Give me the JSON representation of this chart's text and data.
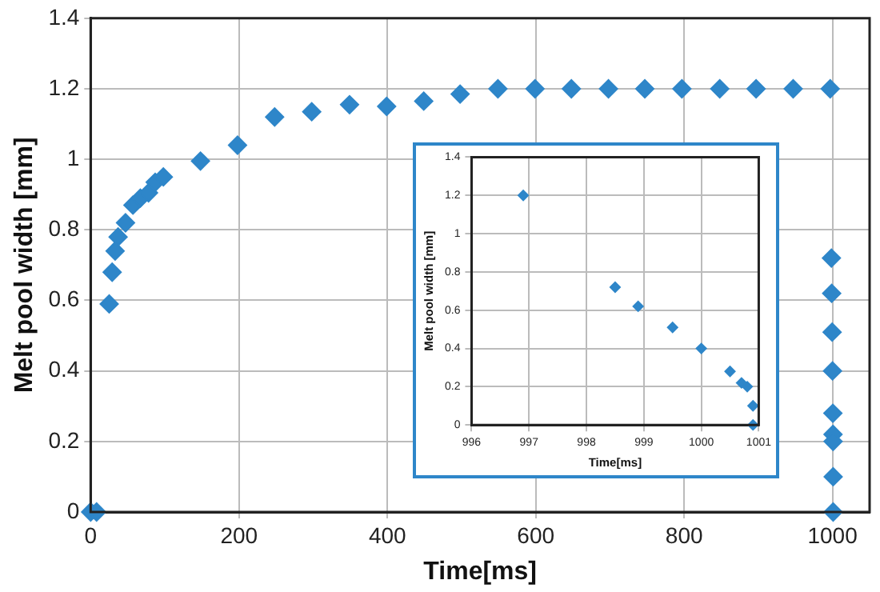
{
  "chart_data": [
    {
      "type": "scatter",
      "xlabel": "Time[ms]",
      "ylabel": "Melt pool width [mm]",
      "marker": "diamond",
      "grid": true,
      "legend": false,
      "xlim": [
        0,
        1050
      ],
      "xticks": [
        0,
        200,
        400,
        600,
        800,
        1000
      ],
      "ylim": [
        0,
        1.4
      ],
      "yticks": [
        0,
        0.2,
        0.4,
        0.6,
        0.8,
        1,
        1.2,
        1.4
      ],
      "series": [
        {
          "color": "#2e86c9",
          "x": [
            0,
            8,
            25,
            29,
            33,
            37,
            47,
            57,
            67,
            78,
            87,
            98,
            148,
            198,
            248,
            298,
            349,
            399,
            449,
            498,
            549,
            599,
            648,
            698,
            747,
            797,
            848,
            897,
            947,
            996.9,
            998.5,
            998.9,
            999.5,
            1000,
            1000.5,
            1000.7,
            1000.8,
            1000.9,
            1000.9
          ],
          "values": [
            0,
            0,
            0.59,
            0.68,
            0.74,
            0.78,
            0.82,
            0.87,
            0.89,
            0.905,
            0.935,
            0.95,
            0.995,
            1.04,
            1.12,
            1.135,
            1.155,
            1.15,
            1.165,
            1.185,
            1.2,
            1.2,
            1.2,
            1.2,
            1.2,
            1.2,
            1.2,
            1.2,
            1.2,
            1.2,
            0.72,
            0.62,
            0.51,
            0.4,
            0.28,
            0.22,
            0.2,
            0.1,
            0
          ]
        }
      ]
    },
    {
      "type": "scatter",
      "xlabel": "Time[ms]",
      "ylabel": "Melt pool width [mm]",
      "marker": "diamond",
      "grid": true,
      "legend": false,
      "xlim": [
        996,
        1001
      ],
      "xticks": [
        996,
        997,
        998,
        999,
        1000,
        1001
      ],
      "ylim": [
        0,
        1.4
      ],
      "yticks": [
        0,
        0.2,
        0.4,
        0.6,
        0.8,
        1,
        1.2,
        1.4
      ],
      "series": [
        {
          "color": "#2e86c9",
          "x": [
            996.9,
            998.5,
            998.9,
            999.5,
            1000,
            1000.5,
            1000.7,
            1000.8,
            1000.9,
            1000.9
          ],
          "values": [
            1.2,
            0.72,
            0.62,
            0.51,
            0.4,
            0.28,
            0.22,
            0.2,
            0.1,
            0
          ]
        }
      ]
    }
  ]
}
